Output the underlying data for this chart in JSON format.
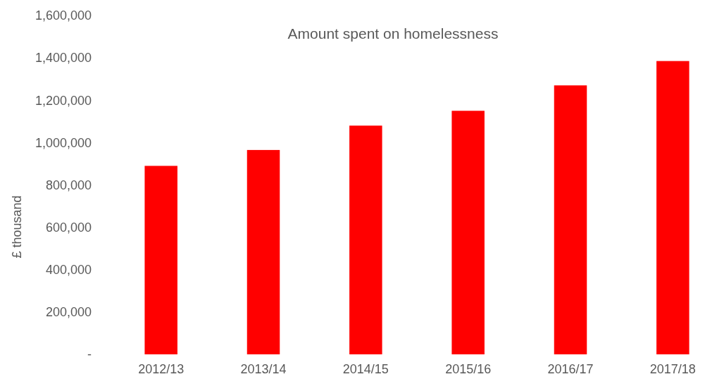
{
  "chart_data": {
    "type": "bar",
    "title": "Amount spent on homelessness",
    "ylabel": "£ thousand",
    "categories": [
      "2012/13",
      "2013/14",
      "2014/15",
      "2015/16",
      "2016/17",
      "2017/18"
    ],
    "values": [
      890000,
      965000,
      1080000,
      1150000,
      1270000,
      1385000
    ],
    "color": "#ff0000",
    "ylim": [
      0,
      1600000
    ],
    "yticks": [
      {
        "value": 0,
        "label": "-"
      },
      {
        "value": 200000,
        "label": "200,000"
      },
      {
        "value": 400000,
        "label": "400,000"
      },
      {
        "value": 600000,
        "label": "600,000"
      },
      {
        "value": 800000,
        "label": "800,000"
      },
      {
        "value": 1000000,
        "label": "1,000,000"
      },
      {
        "value": 1200000,
        "label": "1,200,000"
      },
      {
        "value": 1400000,
        "label": "1,400,000"
      },
      {
        "value": 1600000,
        "label": "1,600,000"
      }
    ],
    "grid": false
  }
}
